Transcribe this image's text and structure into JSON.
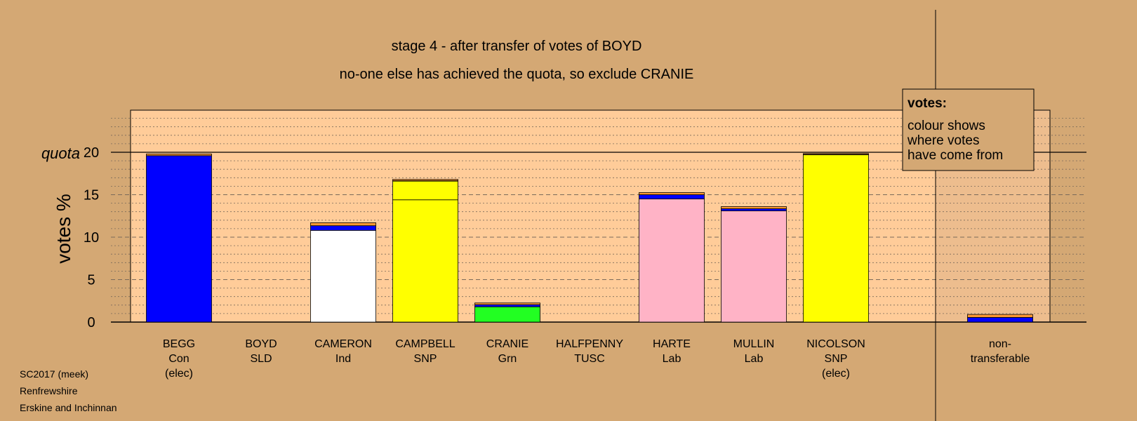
{
  "chart_data": {
    "type": "bar",
    "title": "stage 4 - after transfer of votes of BOYD",
    "subtitle": "no-one else has achieved the quota, so exclude CRANIE",
    "ylabel": "votes %",
    "ylim": [
      0,
      25
    ],
    "yticks": [
      0,
      5,
      10,
      15,
      20
    ],
    "quota": 20,
    "quota_label": "quota",
    "stacked": true,
    "categories": [
      {
        "name": "BEGG",
        "party": "Con",
        "note": "(elec)"
      },
      {
        "name": "BOYD",
        "party": "SLD",
        "note": ""
      },
      {
        "name": "CAMERON",
        "party": "Ind",
        "note": ""
      },
      {
        "name": "CAMPBELL",
        "party": "SNP",
        "note": ""
      },
      {
        "name": "CRANIE",
        "party": "Grn",
        "note": ""
      },
      {
        "name": "HALFPENNY",
        "party": "TUSC",
        "note": ""
      },
      {
        "name": "HARTE",
        "party": "Lab",
        "note": ""
      },
      {
        "name": "MULLIN",
        "party": "Lab",
        "note": ""
      },
      {
        "name": "NICOLSON",
        "party": "SNP",
        "note": "(elec)"
      },
      {
        "name": "",
        "party": "",
        "note": ""
      },
      {
        "name": "non-",
        "party": "transferable",
        "note": ""
      }
    ],
    "segments": [
      [
        {
          "color": "#0000ff",
          "value": 19.6
        },
        {
          "color": "#ff9933",
          "value": 0.2
        }
      ],
      [],
      [
        {
          "color": "#ffffff",
          "value": 10.8
        },
        {
          "color": "#0000ff",
          "value": 0.55
        },
        {
          "color": "#ff9933",
          "value": 0.35
        }
      ],
      [
        {
          "color": "#ffff00",
          "value": 14.4
        },
        {
          "color": "#ffff00",
          "value": 2.2
        },
        {
          "color": "#0000ff",
          "value": 0.05
        },
        {
          "color": "#ff9933",
          "value": 0.15
        }
      ],
      [
        {
          "color": "#22ff22",
          "value": 1.8
        },
        {
          "color": "#0000ff",
          "value": 0.25
        },
        {
          "color": "#ff9933",
          "value": 0.2
        }
      ],
      [],
      [
        {
          "color": "#ffb3c6",
          "value": 14.5
        },
        {
          "color": "#0000ff",
          "value": 0.5
        },
        {
          "color": "#ff9933",
          "value": 0.25
        }
      ],
      [
        {
          "color": "#ffb3c6",
          "value": 13.1
        },
        {
          "color": "#0000ff",
          "value": 0.25
        },
        {
          "color": "#ff9933",
          "value": 0.25
        }
      ],
      [
        {
          "color": "#ffff00",
          "value": 19.7
        },
        {
          "color": "#0000ff",
          "value": 0.05
        },
        {
          "color": "#ff9933",
          "value": 0.1
        }
      ],
      [],
      [
        {
          "color": "#0000ff",
          "value": 0.55
        },
        {
          "color": "#ff9933",
          "value": 0.35
        }
      ]
    ]
  },
  "legend": {
    "heading": "votes:",
    "lines": [
      "colour shows",
      "where votes",
      "have come from"
    ]
  },
  "footer": [
    "SC2017 (meek)",
    "Renfrewshire",
    "Erskine and Inchinnan"
  ]
}
